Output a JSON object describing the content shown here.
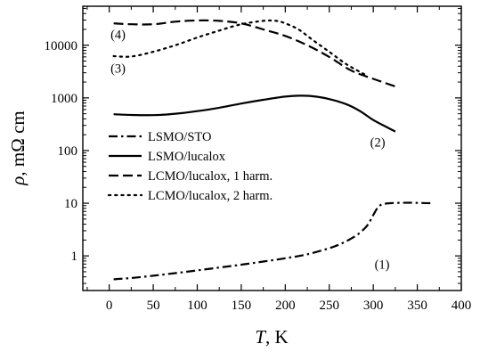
{
  "chart_data": {
    "type": "line",
    "title": "",
    "xlabel": {
      "italic": "T",
      "rest": ", K"
    },
    "ylabel": {
      "italic": "ρ",
      "rest": ", mΩ cm"
    },
    "xlim": [
      -30,
      400
    ],
    "ylim": [
      0.22,
      55000
    ],
    "yscale": "log",
    "xticks": [
      0,
      50,
      100,
      150,
      200,
      250,
      300,
      350,
      400
    ],
    "xtick_labels": [
      "0",
      "50",
      "100",
      "150",
      "200",
      "250",
      "300",
      "350",
      "400"
    ],
    "yticks": [
      1,
      10,
      100,
      1000,
      10000
    ],
    "ytick_labels": [
      "1",
      "10",
      "100",
      "1000",
      "10000"
    ],
    "grid": false,
    "legend_position": "center-left",
    "series": [
      {
        "name": "LSMO/STO",
        "dash": "dash-dot",
        "x": [
          5,
          25,
          50,
          75,
          100,
          125,
          150,
          175,
          200,
          225,
          250,
          265,
          280,
          290,
          295,
          300,
          305,
          310,
          320,
          340,
          365
        ],
        "y": [
          0.36,
          0.38,
          0.42,
          0.47,
          0.53,
          0.6,
          0.68,
          0.78,
          0.9,
          1.07,
          1.4,
          1.75,
          2.4,
          3.3,
          4.2,
          6.0,
          8.2,
          9.5,
          10.0,
          10.2,
          10.0
        ]
      },
      {
        "name": "LSMO/lucalox",
        "dash": "solid",
        "x": [
          5,
          25,
          50,
          75,
          100,
          125,
          150,
          175,
          200,
          215,
          230,
          250,
          270,
          285,
          300,
          315,
          325
        ],
        "y": [
          490,
          475,
          470,
          500,
          560,
          650,
          780,
          920,
          1060,
          1100,
          1080,
          950,
          750,
          560,
          380,
          280,
          230
        ]
      },
      {
        "name": "LCMO/lucalox, 1 harm.",
        "dash": "dashed",
        "x": [
          5,
          25,
          50,
          75,
          100,
          125,
          150,
          175,
          200,
          225,
          250,
          275,
          300,
          325
        ],
        "y": [
          26000,
          25000,
          25000,
          28000,
          29500,
          29000,
          26000,
          20000,
          15000,
          10000,
          6000,
          3300,
          2300,
          1650
        ]
      },
      {
        "name": "LCMO/lucalox, 2 harm.",
        "dash": "dotted",
        "x": [
          5,
          25,
          50,
          75,
          100,
          125,
          150,
          175,
          190,
          200,
          215,
          230,
          250,
          270,
          290
        ],
        "y": [
          6200,
          6100,
          7500,
          10000,
          14000,
          19000,
          25000,
          29000,
          29000,
          26000,
          20000,
          13000,
          7500,
          4300,
          2800
        ]
      }
    ],
    "annotations": [
      {
        "text": "(1)",
        "x": 310,
        "y": 0.7
      },
      {
        "text": "(2)",
        "x": 305,
        "y": 145
      },
      {
        "text": "(3)",
        "x": 10,
        "y": 3700
      },
      {
        "text": "(4)",
        "x": 10,
        "y": 16000
      }
    ]
  }
}
